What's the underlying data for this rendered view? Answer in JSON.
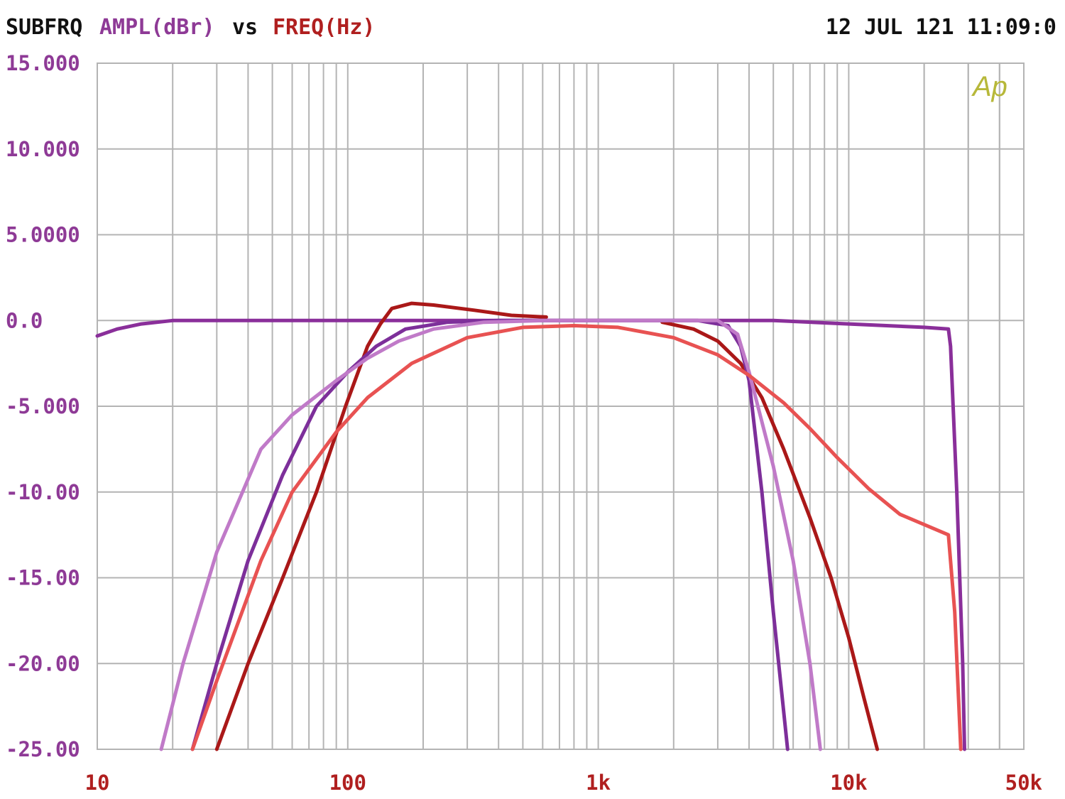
{
  "header": {
    "prefix": "SUBFRQ",
    "y_quantity": "AMPL(dBr)",
    "vs": "vs",
    "x_quantity": "FREQ(Hz)",
    "timestamp": "12 JUL 121 11:09:0"
  },
  "logo": "Ap",
  "colors": {
    "header_text": "#111111",
    "y_axis": "#8e3a96",
    "x_axis": "#b01f1f",
    "grid": "#b4b4b4",
    "logo": "#b7b83a"
  },
  "chart_data": {
    "type": "line",
    "x_scale": "log",
    "xlim": [
      10,
      50000
    ],
    "ylim": [
      -25,
      15
    ],
    "grid": true,
    "xlabel": "FREQ(Hz)",
    "ylabel": "AMPL(dBr)",
    "x_tick_labels": [
      "10",
      "100",
      "1k",
      "10k",
      "50k"
    ],
    "x_tick_values": [
      10,
      100,
      1000,
      10000,
      50000
    ],
    "y_tick_labels": [
      "15.000",
      "10.000",
      "5.0000",
      "0.0",
      "-5.000",
      "-10.00",
      "-15.00",
      "-20.00",
      "-25.00"
    ],
    "y_tick_values": [
      15,
      10,
      5,
      0,
      -5,
      -10,
      -15,
      -20,
      -25
    ],
    "series": [
      {
        "color": "#8a2f9a",
        "points": [
          [
            10,
            -0.9
          ],
          [
            12,
            -0.5
          ],
          [
            15,
            -0.2
          ],
          [
            20,
            0
          ],
          [
            100,
            0
          ],
          [
            1000,
            0
          ],
          [
            5000,
            0
          ],
          [
            10000,
            -0.2
          ],
          [
            20000,
            -0.4
          ],
          [
            25000,
            -0.5
          ],
          [
            25500,
            -1.5
          ],
          [
            27000,
            -10
          ],
          [
            28500,
            -20
          ],
          [
            29000,
            -25
          ]
        ]
      },
      {
        "color": "#aa1818",
        "points": [
          [
            30,
            -25
          ],
          [
            40,
            -20
          ],
          [
            55,
            -15
          ],
          [
            75,
            -10
          ],
          [
            98,
            -5
          ],
          [
            120,
            -1.5
          ],
          [
            135,
            -0.2
          ],
          [
            150,
            0.7
          ],
          [
            180,
            1.0
          ],
          [
            220,
            0.9
          ],
          [
            320,
            0.6
          ],
          [
            450,
            0.3
          ],
          [
            620,
            0.2
          ]
        ]
      },
      {
        "color": "#aa1818",
        "points": [
          [
            1800,
            -0.1
          ],
          [
            2400,
            -0.5
          ],
          [
            3000,
            -1.2
          ],
          [
            3700,
            -2.5
          ],
          [
            4500,
            -4.5
          ],
          [
            5500,
            -7.5
          ],
          [
            7000,
            -11.5
          ],
          [
            8500,
            -15
          ],
          [
            10000,
            -18.5
          ],
          [
            11500,
            -22
          ],
          [
            13000,
            -25
          ]
        ]
      },
      {
        "color": "#7d2f9a",
        "points": [
          [
            24,
            -25
          ],
          [
            30,
            -20
          ],
          [
            40,
            -14
          ],
          [
            55,
            -9
          ],
          [
            75,
            -5
          ],
          [
            100,
            -3
          ],
          [
            130,
            -1.5
          ],
          [
            170,
            -0.5
          ],
          [
            250,
            -0.1
          ],
          [
            400,
            0
          ],
          [
            1000,
            0
          ],
          [
            2500,
            0
          ],
          [
            3300,
            -0.3
          ],
          [
            3700,
            -1.5
          ],
          [
            4000,
            -3.5
          ],
          [
            4500,
            -10
          ],
          [
            5000,
            -17
          ],
          [
            5700,
            -25
          ]
        ]
      },
      {
        "color": "#c07ac8",
        "points": [
          [
            18,
            -25
          ],
          [
            22,
            -20
          ],
          [
            30,
            -13.5
          ],
          [
            45,
            -7.5
          ],
          [
            60,
            -5.5
          ],
          [
            90,
            -3.5
          ],
          [
            120,
            -2.2
          ],
          [
            160,
            -1.2
          ],
          [
            220,
            -0.5
          ],
          [
            350,
            -0.1
          ],
          [
            600,
            0
          ],
          [
            1500,
            0
          ],
          [
            3000,
            0
          ],
          [
            3600,
            -0.8
          ],
          [
            4000,
            -3
          ],
          [
            5000,
            -8.5
          ],
          [
            6000,
            -14
          ],
          [
            7000,
            -20
          ],
          [
            7700,
            -25
          ]
        ]
      },
      {
        "color": "#e85252",
        "points": [
          [
            24,
            -25
          ],
          [
            30,
            -21
          ],
          [
            45,
            -14
          ],
          [
            60,
            -10
          ],
          [
            90,
            -6.5
          ],
          [
            120,
            -4.5
          ],
          [
            180,
            -2.5
          ],
          [
            300,
            -1
          ],
          [
            500,
            -0.4
          ],
          [
            800,
            -0.3
          ],
          [
            1200,
            -0.4
          ],
          [
            2000,
            -1
          ],
          [
            3000,
            -2
          ],
          [
            4000,
            -3.2
          ],
          [
            5500,
            -4.8
          ],
          [
            7000,
            -6.3
          ],
          [
            9000,
            -8
          ],
          [
            12000,
            -9.8
          ],
          [
            16000,
            -11.3
          ],
          [
            25000,
            -12.5
          ],
          [
            26500,
            -17
          ],
          [
            28000,
            -25
          ]
        ]
      }
    ]
  }
}
